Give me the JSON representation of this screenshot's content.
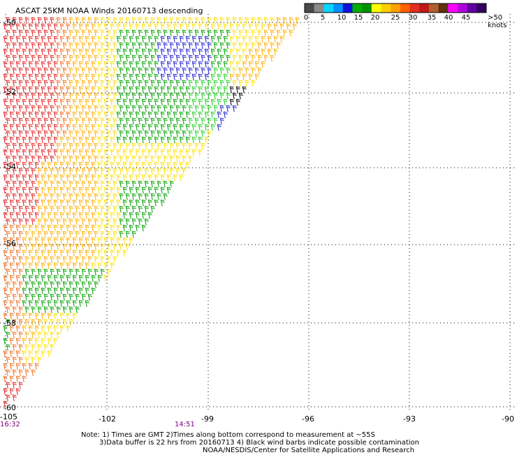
{
  "title": "ASCAT 25KM NOAA Winds 20160713 descending",
  "colorbar": {
    "colors": [
      "#4a4a4a",
      "#8a8a8a",
      "#00d8ff",
      "#0090ff",
      "#1010e0",
      "#00b000",
      "#009000",
      "#ffff00",
      "#ffd000",
      "#ffa000",
      "#ff6000",
      "#e03020",
      "#c01818",
      "#b06030",
      "#603010",
      "#ff00ff",
      "#b000e0",
      "#6000a0",
      "#300060"
    ],
    "ticks": [
      "0",
      "5",
      "10",
      "15",
      "20",
      "25",
      "30",
      "35",
      "40",
      "45",
      ">50 knots"
    ]
  },
  "axes": {
    "lat_labels": [
      "-50",
      "-52",
      "-54",
      "-56",
      "-58",
      "-60"
    ],
    "lon_labels": [
      "-105",
      "-102",
      "-99",
      "-96",
      "-93",
      "-90"
    ]
  },
  "times": [
    "16:32",
    "14:51"
  ],
  "notes": [
    "Note: 1) Times are GMT 2)Times along bottom correspond to measurement at ~55S",
    "3)Data buffer is 22 hrs from 20160713 4) Black wind barbs indicate possible contamination",
    "NOAA/NESDIS/Center for Satellite Applications and Research"
  ],
  "legend_colors": {
    "red": "#e02020",
    "orange": "#f07020",
    "gold": "#ffb000",
    "yellow": "#ffe000",
    "green": "#00a000",
    "lightgreen": "#20d020",
    "blue": "#2020d0",
    "black": "#000000"
  }
}
